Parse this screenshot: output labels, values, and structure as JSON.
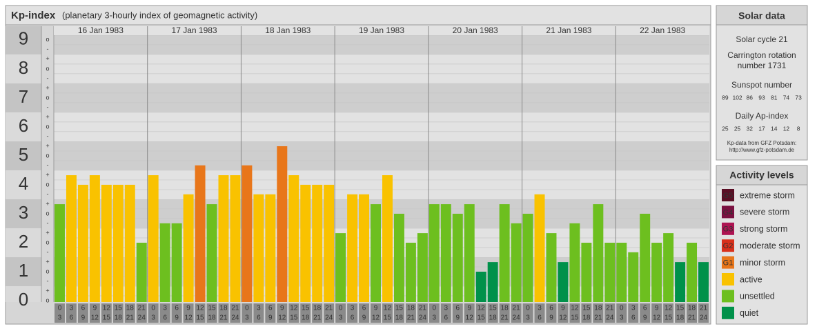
{
  "chart_data": {
    "type": "bar",
    "title": "Kp-index",
    "subtitle": "(planetary 3-hourly index of geomagnetic activity)",
    "days": [
      "16 Jan 1983",
      "17 Jan 1983",
      "18 Jan 1983",
      "19 Jan 1983",
      "20 Jan 1983",
      "21 Jan 1983",
      "22 Jan 1983"
    ],
    "time_slots": [
      [
        "0",
        "3"
      ],
      [
        "3",
        "6"
      ],
      [
        "6",
        "9"
      ],
      [
        "9",
        "12"
      ],
      [
        "12",
        "15"
      ],
      [
        "15",
        "18"
      ],
      [
        "18",
        "21"
      ],
      [
        "21",
        "24"
      ]
    ],
    "values": [
      [
        3.33,
        4.33,
        4,
        4.33,
        4,
        4,
        4,
        2
      ],
      [
        4.33,
        2.67,
        2.67,
        3.67,
        4.67,
        3.33,
        4.33,
        4.33
      ],
      [
        4.67,
        3.67,
        3.67,
        5.33,
        4.33,
        4,
        4,
        4
      ],
      [
        2.33,
        3.67,
        3.67,
        3.33,
        4.33,
        3,
        2,
        2.33
      ],
      [
        3.33,
        3.33,
        3,
        3.33,
        1,
        1.33,
        3.33,
        2.67
      ],
      [
        3,
        3.67,
        2.33,
        1.33,
        2.67,
        2,
        3.33,
        2
      ],
      [
        2,
        1.67,
        3,
        2,
        2.33,
        1.33,
        2,
        1.33
      ]
    ],
    "colors": [
      [
        "#6dbf1f",
        "#f9c200",
        "#f9c200",
        "#f9c200",
        "#f9c200",
        "#f9c200",
        "#f9c200",
        "#6dbf1f"
      ],
      [
        "#f9c200",
        "#6dbf1f",
        "#6dbf1f",
        "#f9c200",
        "#e8761a",
        "#6dbf1f",
        "#f9c200",
        "#f9c200"
      ],
      [
        "#e8761a",
        "#f9c200",
        "#f9c200",
        "#e8761a",
        "#f9c200",
        "#f9c200",
        "#f9c200",
        "#f9c200"
      ],
      [
        "#6dbf1f",
        "#f9c200",
        "#f9c200",
        "#6dbf1f",
        "#f9c200",
        "#6dbf1f",
        "#6dbf1f",
        "#6dbf1f"
      ],
      [
        "#6dbf1f",
        "#6dbf1f",
        "#6dbf1f",
        "#6dbf1f",
        "#00914a",
        "#00914a",
        "#6dbf1f",
        "#6dbf1f"
      ],
      [
        "#6dbf1f",
        "#f9c200",
        "#6dbf1f",
        "#00914a",
        "#6dbf1f",
        "#6dbf1f",
        "#6dbf1f",
        "#6dbf1f"
      ],
      [
        "#6dbf1f",
        "#6dbf1f",
        "#6dbf1f",
        "#6dbf1f",
        "#6dbf1f",
        "#00914a",
        "#6dbf1f",
        "#00914a"
      ]
    ],
    "ylim": [
      0,
      9.33
    ],
    "yticks": [
      0,
      1,
      2,
      3,
      4,
      5,
      6,
      7,
      8,
      9
    ],
    "sublevels": [
      "-",
      "o",
      "+"
    ],
    "legend": {
      "title": "Activity levels",
      "items": [
        {
          "badge": "G5",
          "name": "extreme storm",
          "color": "#5a0e24"
        },
        {
          "badge": "G4",
          "name": "severe storm",
          "color": "#7a1040"
        },
        {
          "badge": "G3",
          "name": "strong storm",
          "color": "#ad1452"
        },
        {
          "badge": "G2",
          "name": "moderate storm",
          "color": "#d9301a"
        },
        {
          "badge": "G1",
          "name": "minor storm",
          "color": "#e8761a"
        },
        {
          "name": "active",
          "color": "#f9c200"
        },
        {
          "name": "unsettled",
          "color": "#6dbf1f"
        },
        {
          "name": "quiet",
          "color": "#00914a"
        }
      ]
    }
  },
  "solar_data": {
    "title": "Solar data",
    "cycle": "Solar cycle 21",
    "carrington": [
      "Carrington rotation",
      "number 1731"
    ],
    "sunspot_title": "Sunspot number",
    "sunspot": [
      89,
      102,
      86,
      93,
      81,
      74,
      73
    ],
    "ap_title": "Daily Ap-index",
    "ap": [
      25,
      25,
      32,
      17,
      14,
      12,
      8
    ],
    "source": [
      "Kp-data from GFZ Potsdam:",
      "http://www.gfz-potsdam.de"
    ]
  }
}
